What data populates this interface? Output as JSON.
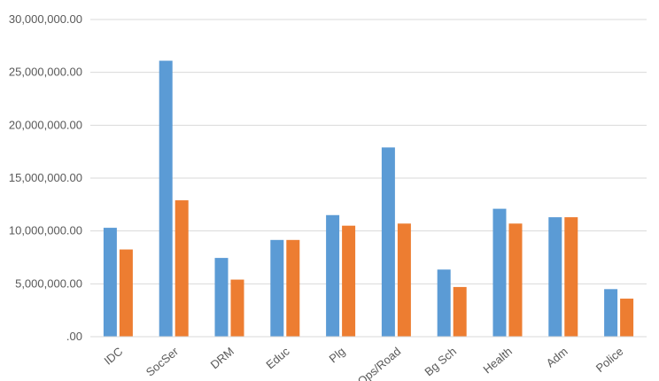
{
  "chart_data": {
    "type": "bar",
    "title": "",
    "xlabel": "",
    "ylabel": "",
    "categories": [
      "IDC",
      "SocSer",
      "DRM",
      "Educ",
      "Plg",
      "Ops/Road",
      "Bg Sch",
      "Health",
      "Adm",
      "Police"
    ],
    "series": [
      {
        "color": "#5B9BD5",
        "values": [
          10300000,
          26100000,
          7450000,
          9150000,
          11500000,
          17900000,
          6350000,
          12100000,
          11300000,
          4500000
        ]
      },
      {
        "color": "#ED7D31",
        "values": [
          8250000,
          12900000,
          5400000,
          9150000,
          10500000,
          10700000,
          4700000,
          10700000,
          11300000,
          3600000
        ]
      }
    ],
    "ylim": [
      0,
      30000000
    ],
    "yticks": [
      0,
      5000000,
      10000000,
      15000000,
      20000000,
      25000000,
      30000000
    ],
    "ytick_labels": [
      ".00",
      "5,000,000.00",
      "10,000,000.00",
      "15,000,000.00",
      "20,000,000.00",
      "25,000,000.00",
      "30,000,000.00"
    ],
    "grid": true,
    "gridline_color": "#D9D9D9",
    "legend": "none"
  }
}
